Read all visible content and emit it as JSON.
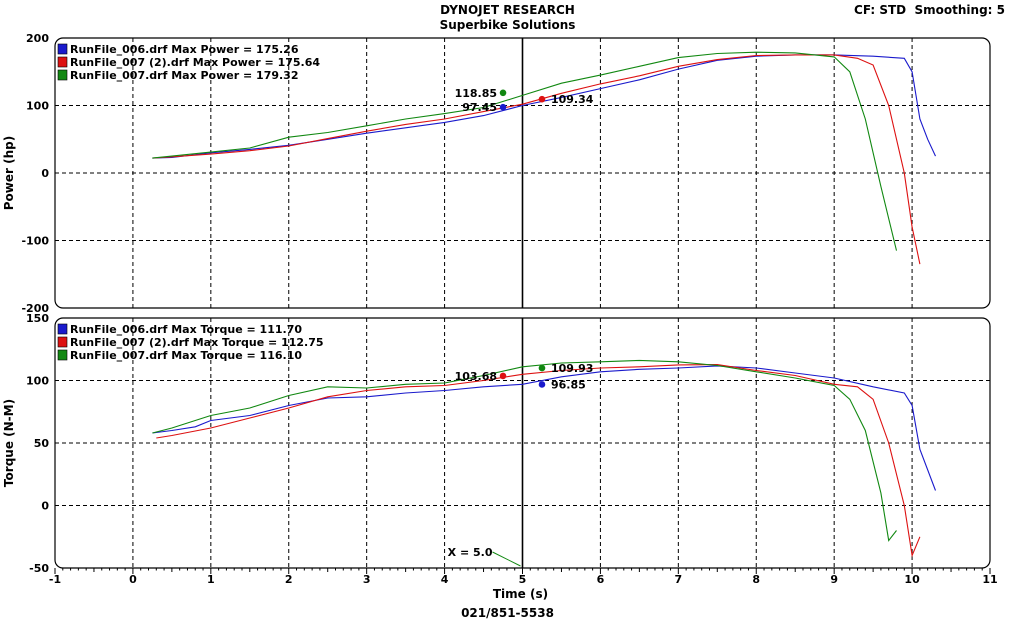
{
  "header": {
    "title": "DYNOJET RESEARCH",
    "subtitle": "Superbike Solutions",
    "settings": "CF: STD  Smoothing: 5",
    "footer": "021/851-5538"
  },
  "colors": {
    "blue": "#1a1acc",
    "red": "#dd1111",
    "green": "#118811",
    "marker_black": "#000000"
  },
  "chart_data": [
    {
      "type": "line",
      "ylabel": "Power (hp)",
      "xlabel": "",
      "xlim": [
        -1,
        11
      ],
      "ylim": [
        -200,
        200
      ],
      "xticks": [
        -1,
        0,
        1,
        2,
        3,
        4,
        5,
        6,
        7,
        8,
        9,
        10,
        11
      ],
      "yticks": [
        -200,
        -100,
        0,
        100,
        200
      ],
      "grid": true,
      "legend_position": "top-left",
      "series": [
        {
          "name": "RunFile_006.drf Max Power = 175.26",
          "color": "blue",
          "x": [
            0.25,
            0.5,
            1.0,
            1.5,
            2.0,
            2.5,
            3.0,
            3.5,
            4.0,
            4.5,
            5.0,
            5.5,
            6.0,
            6.5,
            7.0,
            7.5,
            8.0,
            8.5,
            9.0,
            9.5,
            9.9,
            10.0,
            10.1,
            10.2,
            10.3
          ],
          "y": [
            22,
            23,
            30,
            35,
            41,
            50,
            59,
            67,
            75,
            85,
            100,
            112,
            125,
            138,
            154,
            167,
            173,
            175,
            175,
            173,
            170,
            150,
            80,
            50,
            25
          ]
        },
        {
          "name": "RunFile_007 (2).drf Max Power = 175.64",
          "color": "red",
          "x": [
            0.25,
            0.5,
            1.0,
            1.5,
            2.0,
            2.5,
            3.0,
            3.5,
            4.0,
            4.5,
            5.0,
            5.5,
            6.0,
            6.5,
            7.0,
            7.5,
            8.0,
            8.5,
            9.0,
            9.3,
            9.5,
            9.7,
            9.9,
            10.0,
            10.1
          ],
          "y": [
            22,
            24,
            28,
            33,
            40,
            51,
            62,
            72,
            80,
            91,
            102,
            118,
            132,
            144,
            158,
            168,
            174,
            175,
            175,
            170,
            160,
            100,
            0,
            -80,
            -135
          ]
        },
        {
          "name": "RunFile_007.drf Max Power = 179.32",
          "color": "green",
          "x": [
            0.25,
            0.5,
            1.0,
            1.5,
            2.0,
            2.5,
            3.0,
            3.5,
            4.0,
            4.5,
            5.0,
            5.5,
            6.0,
            6.5,
            7.0,
            7.5,
            8.0,
            8.5,
            9.0,
            9.2,
            9.4,
            9.6,
            9.8
          ],
          "y": [
            22,
            25,
            31,
            37,
            53,
            60,
            70,
            80,
            88,
            97,
            115,
            133,
            145,
            158,
            171,
            177,
            179,
            178,
            172,
            150,
            80,
            -20,
            -115
          ]
        }
      ],
      "markers": [
        {
          "x": 4.75,
          "y": 118.85,
          "color": "green",
          "label": "118.85",
          "side": "left"
        },
        {
          "x": 4.75,
          "y": 97.45,
          "color": "blue",
          "label": "97.45",
          "side": "left"
        },
        {
          "x": 5.25,
          "y": 109.34,
          "color": "red",
          "label": "109.34",
          "side": "right"
        }
      ]
    },
    {
      "type": "line",
      "ylabel": "Torque (N-M)",
      "xlabel": "Time (s)",
      "xlim": [
        -1,
        11
      ],
      "ylim": [
        -50,
        150
      ],
      "xticks": [
        -1,
        0,
        1,
        2,
        3,
        4,
        5,
        6,
        7,
        8,
        9,
        10,
        11
      ],
      "yticks": [
        -50,
        0,
        50,
        100,
        150
      ],
      "grid": true,
      "legend_position": "top-left",
      "series": [
        {
          "name": "RunFile_006.drf Max Torque = 111.70",
          "color": "blue",
          "x": [
            0.25,
            0.5,
            0.8,
            1.0,
            1.5,
            2.0,
            2.5,
            3.0,
            3.5,
            4.0,
            4.5,
            5.0,
            5.5,
            6.0,
            6.5,
            7.0,
            7.5,
            8.0,
            8.5,
            9.0,
            9.5,
            9.9,
            10.0,
            10.1,
            10.3
          ],
          "y": [
            58,
            60,
            63,
            68,
            72,
            80,
            86,
            87,
            90,
            92,
            95,
            97,
            103,
            107,
            109,
            110,
            111.7,
            110,
            106,
            102,
            95,
            90,
            80,
            45,
            12
          ]
        },
        {
          "name": "RunFile_007 (2).drf Max Torque = 112.75",
          "color": "red",
          "x": [
            0.3,
            0.5,
            1.0,
            1.5,
            2.0,
            2.5,
            3.0,
            3.5,
            4.0,
            4.5,
            5.0,
            5.5,
            6.0,
            6.5,
            7.0,
            7.5,
            8.0,
            8.5,
            9.0,
            9.3,
            9.5,
            9.7,
            9.9,
            10.0,
            10.1
          ],
          "y": [
            54,
            56,
            62,
            70,
            78,
            87,
            92,
            95,
            96,
            100,
            105,
            108,
            110,
            111,
            112.5,
            112.75,
            108,
            104,
            97,
            95,
            85,
            50,
            0,
            -40,
            -25
          ]
        },
        {
          "name": "RunFile_007.drf Max Torque = 116.10",
          "color": "green",
          "x": [
            0.25,
            0.5,
            1.0,
            1.5,
            2.0,
            2.5,
            3.0,
            3.5,
            4.0,
            4.5,
            5.0,
            5.5,
            6.0,
            6.5,
            7.0,
            7.5,
            8.0,
            8.5,
            9.0,
            9.2,
            9.4,
            9.6,
            9.7,
            9.8
          ],
          "y": [
            58,
            62,
            72,
            78,
            88,
            95,
            94,
            97,
            98,
            104,
            111,
            114,
            115,
            116.1,
            115,
            112,
            107,
            102,
            96,
            85,
            60,
            10,
            -28,
            -20
          ]
        }
      ],
      "markers": [
        {
          "x": 4.75,
          "y": 103.68,
          "color": "red",
          "label": "103.68",
          "side": "left"
        },
        {
          "x": 5.25,
          "y": 109.93,
          "color": "green",
          "label": "109.93",
          "side": "right"
        },
        {
          "x": 5.25,
          "y": 96.85,
          "color": "blue",
          "label": "96.85",
          "side": "right"
        }
      ],
      "cursor": {
        "x": 5.0,
        "label": "X = 5.0"
      }
    }
  ]
}
